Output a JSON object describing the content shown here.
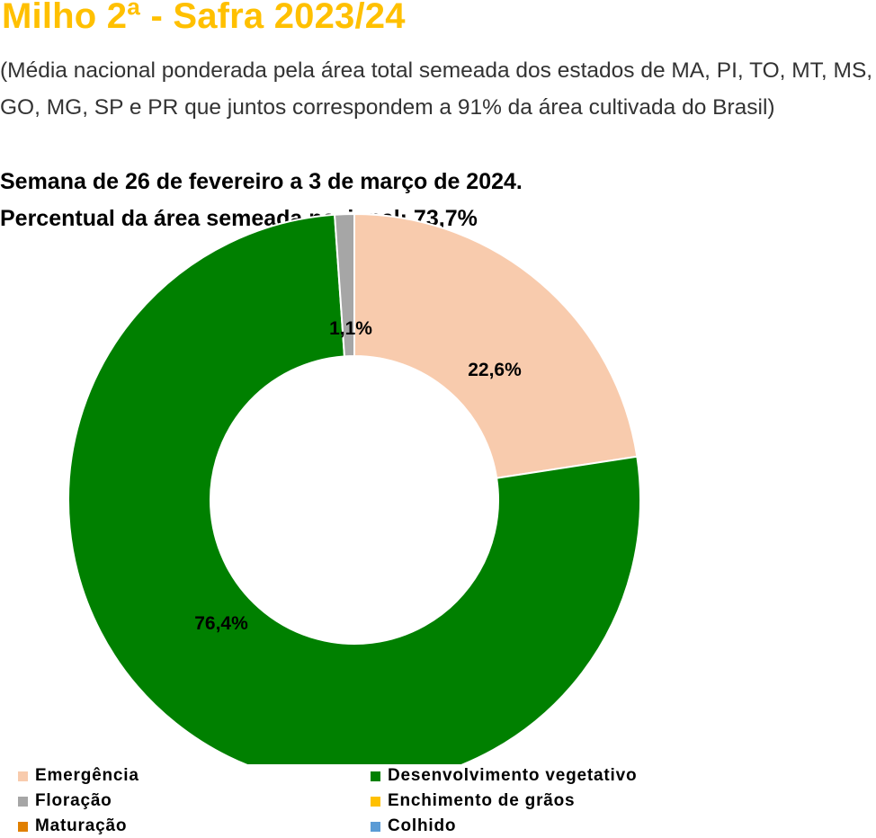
{
  "header": {
    "title": "Milho 2ª - Safra 2023/24",
    "subtitle": "(Média nacional ponderada pela área total semeada dos estados de MA, PI, TO, MT, MS, GO, MG, SP e PR que juntos correspondem a 91% da área cultivada do Brasil)",
    "week": "Semana de 26 de fevereiro a 3 de março de 2024.",
    "sown_area": "Percentual da área semeada nacional: 73,7%"
  },
  "chart_data": {
    "type": "pie",
    "style": "doughnut",
    "title": "",
    "slices": [
      {
        "name": "Emergência",
        "value": 22.6,
        "label": "22,6%",
        "color": "#F8CBAD"
      },
      {
        "name": "Desenvolvimento vegetativo",
        "value": 76.4,
        "label": "76,4%",
        "color": "#008000"
      },
      {
        "name": "Floração",
        "value": 1.1,
        "label": "1,1%",
        "color": "#A6A6A6"
      },
      {
        "name": "Enchimento de grãos",
        "value": 0,
        "label": "",
        "color": "#FFC000"
      },
      {
        "name": "Maturação",
        "value": 0,
        "label": "",
        "color": "#E07F00"
      },
      {
        "name": "Colhido",
        "value": 0,
        "label": "",
        "color": "#5B9BD5"
      }
    ],
    "legend": {
      "placement": "bottom",
      "items": [
        {
          "label": "Emergência",
          "color": "#F8CBAD"
        },
        {
          "label": "Desenvolvimento vegetativo",
          "color": "#008000"
        },
        {
          "label": "Floração",
          "color": "#A6A6A6"
        },
        {
          "label": "Enchimento de grãos",
          "color": "#FFC000"
        },
        {
          "label": "Maturação",
          "color": "#E07F00"
        },
        {
          "label": "Colhido",
          "color": "#5B9BD5"
        }
      ]
    }
  }
}
